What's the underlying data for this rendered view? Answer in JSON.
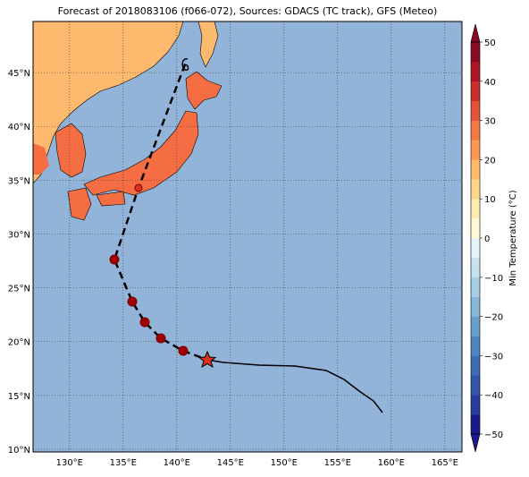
{
  "title": "Forecast of 2018083106 (f066-072), Sources: GDACS (TC track), GFS (Meteo)",
  "map": {
    "lonlim": [
      126.6,
      166.6
    ],
    "latlim": [
      9.75,
      49.75
    ],
    "lon_ticks": [
      {
        "value": 130,
        "label": "130°E"
      },
      {
        "value": 135,
        "label": "135°E"
      },
      {
        "value": 140,
        "label": "140°E"
      },
      {
        "value": 145,
        "label": "145°E"
      },
      {
        "value": 150,
        "label": "150°E"
      },
      {
        "value": 155,
        "label": "155°E"
      },
      {
        "value": 160,
        "label": "160°E"
      },
      {
        "value": 165,
        "label": "165°E"
      }
    ],
    "lat_ticks": [
      {
        "value": 10,
        "label": "10°N"
      },
      {
        "value": 15,
        "label": "15°N"
      },
      {
        "value": 20,
        "label": "20°N"
      },
      {
        "value": 25,
        "label": "25°N"
      },
      {
        "value": 30,
        "label": "30°N"
      },
      {
        "value": 35,
        "label": "35°N"
      },
      {
        "value": 40,
        "label": "40°N"
      },
      {
        "value": 45,
        "label": "45°N"
      }
    ],
    "grid": true
  },
  "colorbar": {
    "label": "Min Temperature (°C)",
    "lim": [
      -50,
      50
    ],
    "ticks": [
      {
        "value": -50,
        "label": "−50"
      },
      {
        "value": -40,
        "label": "−40"
      },
      {
        "value": -30,
        "label": "−30"
      },
      {
        "value": -20,
        "label": "−20"
      },
      {
        "value": -10,
        "label": "−10"
      },
      0,
      10,
      20,
      30,
      40,
      50
    ],
    "colors": [
      "#1a1a8c",
      "#2a3d9e",
      "#3356a8",
      "#3f6db4",
      "#4f86c0",
      "#6a9fcb",
      "#86b6d8",
      "#a6cde3",
      "#c6e2ee",
      "#e5f4f7",
      "#fdf9d6",
      "#feebb0",
      "#fed58a",
      "#fdbb6b",
      "#f89a53",
      "#f27844",
      "#e4523a",
      "#cd2d2d",
      "#ae1527",
      "#8a0a24"
    ]
  }
}
